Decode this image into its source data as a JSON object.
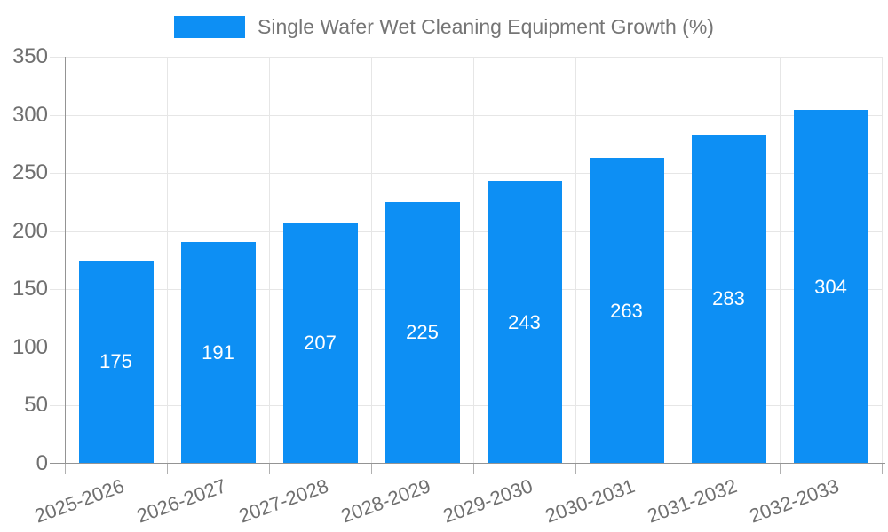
{
  "legend": {
    "label": "Single Wafer Wet Cleaning Equipment Growth (%)"
  },
  "chart_data": {
    "type": "bar",
    "title": "",
    "series_name": "Single Wafer Wet Cleaning Equipment Growth (%)",
    "legend_position": "top",
    "categories": [
      "2025-2026",
      "2026-2027",
      "2027-2028",
      "2028-2029",
      "2029-2030",
      "2030-2031",
      "2031-2032",
      "2032-2033"
    ],
    "values": [
      175,
      191,
      207,
      225,
      243,
      263,
      283,
      304
    ],
    "xlabel": "",
    "ylabel": "",
    "ylim": [
      0,
      350
    ],
    "y_ticks": [
      0,
      50,
      100,
      150,
      200,
      250,
      300,
      350
    ],
    "grid": true,
    "x_label_rotation_deg": -20,
    "value_labels": "centered-inside-bars"
  },
  "colors": {
    "bar": "#0D8FF4",
    "grid": "#E6E6E6",
    "axis_line": "#949494",
    "tick": "#B0B0B0",
    "axis_text": "#707070",
    "legend_text": "#757575",
    "value_label": "#FFFFFF",
    "background": "#FFFFFF"
  }
}
